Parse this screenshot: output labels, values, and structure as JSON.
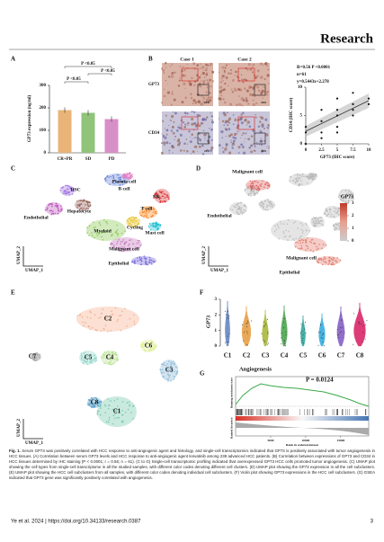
{
  "header": {
    "journal": "Research"
  },
  "panels": [
    {
      "label": "A",
      "chart_data": {
        "type": "bar",
        "y_label": "GP73 expression (ng/ml)",
        "categories": [
          "CR+PR",
          "SD",
          "PD"
        ],
        "values": [
          190,
          178,
          150
        ],
        "colors": [
          "#e8b478",
          "#8fc47a",
          "#d88fc8"
        ],
        "ylim": [
          0,
          300
        ],
        "yticks": [
          0,
          100,
          200,
          300
        ],
        "annotations": [
          "P <0.05",
          "P <0.05",
          "P <0.05"
        ]
      }
    },
    {
      "label": "B",
      "images": {
        "columns": [
          "Case 1",
          "Case 2"
        ],
        "rows": [
          "GP73",
          "CD34"
        ],
        "magnification": "20X"
      },
      "chart_data": {
        "type": "scatter",
        "stats": [
          "R=0.56   P <0.0001",
          "n=61",
          "y=0.5443x+2.278"
        ],
        "x_label": "GP73 (IHC score)",
        "y_label": "CD34 (IHC score)",
        "x": [
          0,
          0,
          0,
          2.5,
          2.5,
          2.5,
          2.5,
          5,
          5,
          5,
          5,
          5,
          7.5,
          7.5,
          7.5,
          7.5,
          10,
          10
        ],
        "y": [
          0,
          2,
          3,
          1,
          2,
          4,
          6,
          2,
          3,
          5,
          6,
          8,
          5,
          6,
          7,
          9,
          7,
          8
        ],
        "xlim": [
          0,
          10
        ],
        "ylim": [
          0,
          10
        ],
        "xticks": [
          0,
          2.5,
          5,
          7.5,
          10
        ],
        "yticks": [
          0,
          5,
          10
        ]
      }
    },
    {
      "label": "C",
      "cells": [
        "HSC",
        "Plasma cell",
        "B cell",
        "NK",
        "Endothelial",
        "Hepatocyte",
        "T cell",
        "Cycling",
        "Myeloid",
        "Mast cell",
        "Malignant cell",
        "Epithelial"
      ],
      "x_label": "UMAP_1",
      "y_label": "UMAP_2"
    },
    {
      "label": "D",
      "cells": [
        "Malignant cell",
        "Endothelial",
        "Malignant cell",
        "Epithelial"
      ],
      "legend_title": "GP73",
      "legend_ticks": [
        0,
        1,
        2,
        3
      ],
      "x_label": "UMAP_1",
      "y_label": "UMAP_2"
    },
    {
      "label": "E",
      "clusters": [
        "C2",
        "C5",
        "C4",
        "C6",
        "C7",
        "C3",
        "C8",
        "C1"
      ],
      "x_label": "UMAP_1",
      "y_label": "UMAP_2"
    },
    {
      "label": "F",
      "chart_data": {
        "type": "violin",
        "y_label": "GP73",
        "categories": [
          "C1",
          "C2",
          "C3",
          "C4",
          "C5",
          "C6",
          "C7",
          "C8"
        ],
        "colors": [
          "#5b7fbf",
          "#e69a3c",
          "#a5b52e",
          "#43a047",
          "#26a69a",
          "#29a9e0",
          "#7e57c2",
          "#d81b60"
        ],
        "ylim": [
          0,
          3
        ],
        "yticks": [
          0,
          1,
          2,
          3
        ]
      }
    },
    {
      "label": "G",
      "chart_data": {
        "type": "gsea",
        "title": "Angiogenesis",
        "p_value": "P = 0.0124",
        "y_label": "Running enrichment score",
        "y2_label": "Ranked list metric",
        "x_label": "Rank in ordered dataset",
        "xlim": [
          0,
          19000
        ],
        "xticks": [
          5000,
          10000,
          15000
        ]
      }
    }
  ],
  "caption": {
    "label": "Fig. 1.",
    "text": "Serum GP73 was positively correlated with HCC response to anti-angiogenic agent and histology, and single-cell transcriptomics indicated that GP73 is positively associated with tumor angiogenesis in HCC tissues. (A) Correlation between serum GP73 levels and HCC response to anti-angiogenic agent lenvatinib among 238 advanced HCC patients. (B) Correlation between expressions of GP73 and CD34 in HCC tissues determined by IHC staining (P < 0.0001; r = 0.56; n = 61). (C to G) Single-cell transcriptomic profiling indicated that overexpressed GP73 HCC cells promoted tumor angiogenesis. (C) UMAP plot showing the cell types from single-cell transcriptome in all the studied samples, with different color codes denoting different cell clusters. (D) UMAP plot showing the GP73 expression in all the cell subclusters. (E) UMAP plot showing the HCC cell subclusters from all samples, with different color codes denoting individual cell subclusters. (F) Violin plot showing GP73 expressions in the HCC cell subclusters. (G) GSEA indicated that GP73 gene was significantly positively correlated with angiogenesis."
  },
  "footer": {
    "citation": "Ye et al. 2024 | https://doi.org/10.34133/research.0387",
    "page": "3"
  }
}
